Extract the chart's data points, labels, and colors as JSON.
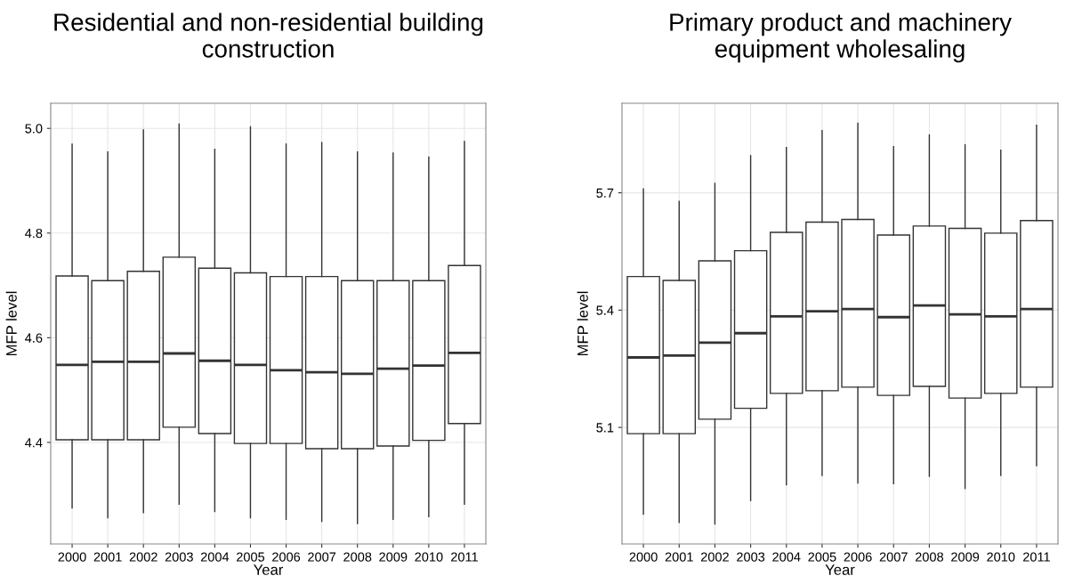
{
  "chart_data": [
    {
      "type": "box",
      "title": "Residential and non-residential building construction",
      "xlabel": "Year",
      "ylabel": "MFP level",
      "categories": [
        "2000",
        "2001",
        "2002",
        "2003",
        "2004",
        "2005",
        "2006",
        "2007",
        "2008",
        "2009",
        "2010",
        "2011"
      ],
      "ylim": [
        4.206,
        5.048
      ],
      "yticks": [
        4.4,
        4.6,
        4.8,
        {
          "value": 5.0,
          "label": "5.0"
        }
      ],
      "grid": true,
      "color": "#333333",
      "boxes": [
        {
          "low": 4.275,
          "q1": 4.405,
          "median": 4.548,
          "q3": 4.718,
          "high": 4.97
        },
        {
          "low": 4.256,
          "q1": 4.405,
          "median": 4.554,
          "q3": 4.709,
          "high": 4.955
        },
        {
          "low": 4.266,
          "q1": 4.405,
          "median": 4.554,
          "q3": 4.727,
          "high": 4.997
        },
        {
          "low": 4.282,
          "q1": 4.429,
          "median": 4.57,
          "q3": 4.754,
          "high": 5.008
        },
        {
          "low": 4.268,
          "q1": 4.417,
          "median": 4.556,
          "q3": 4.733,
          "high": 4.96
        },
        {
          "low": 4.256,
          "q1": 4.398,
          "median": 4.548,
          "q3": 4.724,
          "high": 5.003
        },
        {
          "low": 4.253,
          "q1": 4.398,
          "median": 4.538,
          "q3": 4.717,
          "high": 4.97
        },
        {
          "low": 4.249,
          "q1": 4.388,
          "median": 4.534,
          "q3": 4.717,
          "high": 4.973
        },
        {
          "low": 4.245,
          "q1": 4.388,
          "median": 4.531,
          "q3": 4.709,
          "high": 4.955
        },
        {
          "low": 4.253,
          "q1": 4.393,
          "median": 4.541,
          "q3": 4.709,
          "high": 4.953
        },
        {
          "low": 4.258,
          "q1": 4.404,
          "median": 4.547,
          "q3": 4.709,
          "high": 4.945
        },
        {
          "low": 4.282,
          "q1": 4.436,
          "median": 4.571,
          "q3": 4.738,
          "high": 4.975
        }
      ]
    },
    {
      "type": "box",
      "title": "Primary product and machinery equipment wholesaling",
      "xlabel": "Year",
      "ylabel": "MFP level",
      "categories": [
        "2000",
        "2001",
        "2002",
        "2003",
        "2004",
        "2005",
        "2006",
        "2007",
        "2008",
        "2009",
        "2010",
        "2011"
      ],
      "ylim": [
        4.802,
        5.929
      ],
      "yticks": [
        5.1,
        5.4,
        5.7
      ],
      "grid": true,
      "color": "#333333",
      "boxes": [
        {
          "low": 4.878,
          "q1": 5.084,
          "median": 5.279,
          "q3": 5.486,
          "high": 5.71
        },
        {
          "low": 4.857,
          "q1": 5.084,
          "median": 5.284,
          "q3": 5.476,
          "high": 5.678
        },
        {
          "low": 4.853,
          "q1": 5.121,
          "median": 5.317,
          "q3": 5.526,
          "high": 5.724
        },
        {
          "low": 4.913,
          "q1": 5.149,
          "median": 5.341,
          "q3": 5.552,
          "high": 5.795
        },
        {
          "low": 4.953,
          "q1": 5.187,
          "median": 5.384,
          "q3": 5.599,
          "high": 5.816
        },
        {
          "low": 4.977,
          "q1": 5.194,
          "median": 5.397,
          "q3": 5.625,
          "high": 5.859
        },
        {
          "low": 4.958,
          "q1": 5.203,
          "median": 5.403,
          "q3": 5.632,
          "high": 5.878
        },
        {
          "low": 4.956,
          "q1": 5.182,
          "median": 5.382,
          "q3": 5.592,
          "high": 5.818
        },
        {
          "low": 4.975,
          "q1": 5.205,
          "median": 5.412,
          "q3": 5.615,
          "high": 5.848
        },
        {
          "low": 4.944,
          "q1": 5.175,
          "median": 5.389,
          "q3": 5.609,
          "high": 5.823
        },
        {
          "low": 4.977,
          "q1": 5.187,
          "median": 5.384,
          "q3": 5.597,
          "high": 5.809
        },
        {
          "low": 5.002,
          "q1": 5.203,
          "median": 5.403,
          "q3": 5.629,
          "high": 5.873
        }
      ]
    }
  ]
}
